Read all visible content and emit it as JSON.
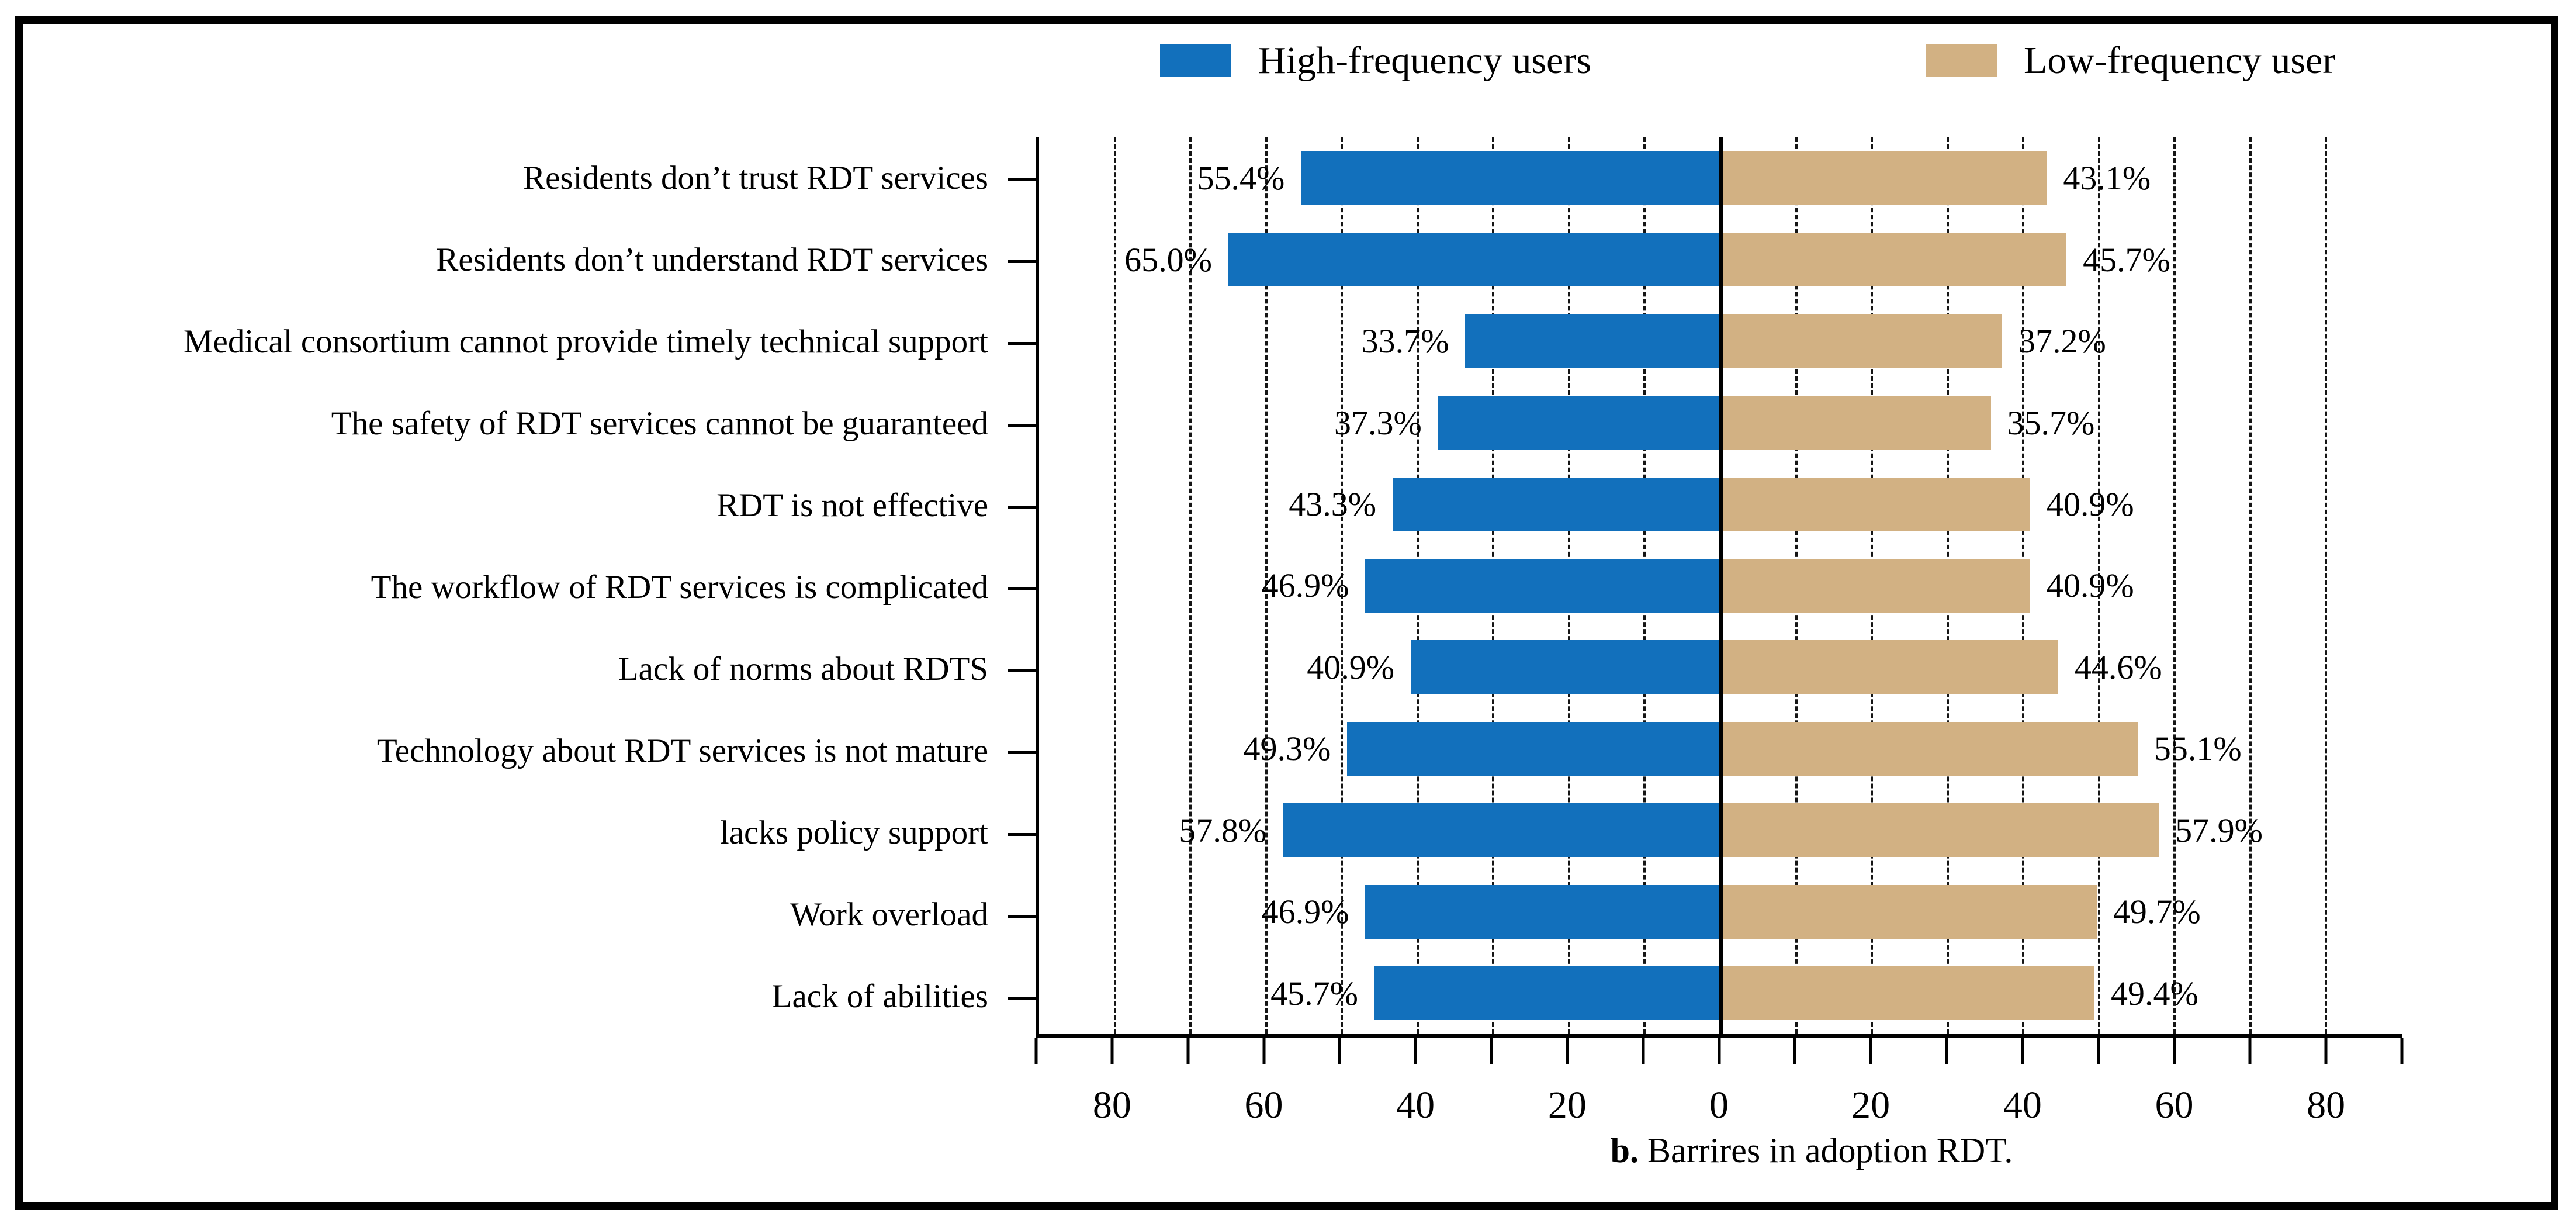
{
  "figure": {
    "legend": [
      {
        "label": "High-frequency users",
        "color": "#1270BC"
      },
      {
        "label": "Low-frequency user",
        "color": "#D2B183"
      }
    ],
    "caption_prefix": "b.",
    "caption_rest": " Barrires in adoption RDT."
  },
  "chart_data": {
    "type": "bar",
    "orientation": "horizontal-diverging",
    "title": "",
    "xlabel": "",
    "ylabel": "",
    "categories": [
      "Residents don’t trust RDT services",
      "Residents don’t understand RDT services",
      "Medical consortium cannot provide timely technical support",
      "The safety of RDT services cannot be guaranteed",
      "RDT is not effective",
      "The workflow of RDT services is complicated",
      "Lack of norms about RDTS",
      "Technology about RDT services is not mature",
      "lacks policy support",
      "Work overload",
      "Lack of abilities"
    ],
    "series": [
      {
        "name": "High-frequency users",
        "side": "left",
        "color": "#1270BC",
        "values": [
          55.4,
          65.0,
          33.7,
          37.3,
          43.3,
          46.9,
          40.9,
          49.3,
          57.8,
          46.9,
          45.7
        ]
      },
      {
        "name": "Low-frequency user",
        "side": "right",
        "color": "#D2B183",
        "values": [
          43.1,
          45.7,
          37.2,
          35.7,
          40.9,
          40.9,
          44.6,
          55.1,
          57.9,
          49.7,
          49.4
        ]
      }
    ],
    "value_labels_left": [
      "55.4%",
      "65.0%",
      "33.7%",
      "37.3%",
      "43.3%",
      "46.9%",
      "40.9%",
      "49.3%",
      "57.8%",
      "46.9%",
      "45.7%"
    ],
    "value_labels_right": [
      "43.1%",
      "45.7%",
      "37.2%",
      "35.7%",
      "40.9%",
      "40.9%",
      "44.6%",
      "55.1%",
      "57.9%",
      "49.7%",
      "49.4%"
    ],
    "xlim": [
      -90,
      90
    ],
    "unit": "percent",
    "grid": "dashed vertical gridlines every 10, solid line at 0",
    "legend_position": "top",
    "gridline_values": [
      -80,
      -70,
      -60,
      -50,
      -40,
      -30,
      -20,
      -10,
      10,
      20,
      30,
      40,
      50,
      60,
      70,
      80
    ],
    "x_minor_tick_values": [
      -90,
      -80,
      -70,
      -60,
      -50,
      -40,
      -30,
      -20,
      -10,
      0,
      10,
      20,
      30,
      40,
      50,
      60,
      70,
      80,
      90
    ],
    "x_tick_values": [
      -80,
      -60,
      -40,
      -20,
      0,
      20,
      40,
      60,
      80
    ],
    "x_tick_labels": [
      "80",
      "60",
      "40",
      "20",
      "0",
      "20",
      "40",
      "60",
      "80"
    ]
  }
}
